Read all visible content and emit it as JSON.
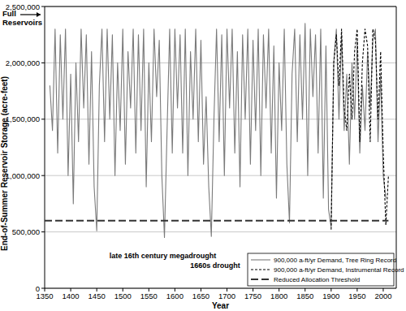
{
  "chart_data": {
    "type": "line",
    "x_label": "Year",
    "y_label": "End-of-Summer Reservoir Storage (acre-feet)",
    "xlim": [
      1350,
      2025
    ],
    "xticks": [
      1350,
      1400,
      1450,
      1500,
      1550,
      1600,
      1650,
      1700,
      1750,
      1800,
      1850,
      1900,
      1950,
      2000
    ],
    "ylim": [
      0,
      2500000
    ],
    "yticks": [
      0,
      {
        "value": 500000,
        "label": "500,000"
      },
      {
        "value": 1000000,
        "label": "1,000,000"
      },
      {
        "value": 1500000,
        "label": "1,500,000"
      },
      {
        "value": 2000000,
        "label": "2,000,000"
      },
      {
        "value": 2500000,
        "label": "2,500,000"
      }
    ],
    "grid": true,
    "legend": "bottom-right",
    "annotations": [
      "Full Reservoirs",
      "late 16th century megadrought",
      "1660s drought"
    ],
    "series": [
      {
        "name": "900,000 a-ft/yr Demand, Tree Ring Record",
        "color": "#7a7a7a",
        "line_style": "solid",
        "x": [
          1360,
          1365,
          1370,
          1375,
          1380,
          1385,
          1390,
          1395,
          1400,
          1405,
          1410,
          1415,
          1420,
          1425,
          1430,
          1435,
          1440,
          1445,
          1450,
          1455,
          1460,
          1465,
          1470,
          1475,
          1480,
          1485,
          1490,
          1495,
          1500,
          1505,
          1510,
          1515,
          1520,
          1525,
          1530,
          1535,
          1540,
          1545,
          1550,
          1555,
          1560,
          1565,
          1570,
          1575,
          1580,
          1585,
          1590,
          1595,
          1600,
          1605,
          1610,
          1615,
          1620,
          1625,
          1630,
          1635,
          1640,
          1645,
          1650,
          1655,
          1660,
          1665,
          1670,
          1675,
          1680,
          1685,
          1690,
          1695,
          1700,
          1705,
          1710,
          1715,
          1720,
          1725,
          1730,
          1735,
          1740,
          1745,
          1750,
          1755,
          1760,
          1765,
          1770,
          1775,
          1780,
          1785,
          1790,
          1795,
          1800,
          1805,
          1810,
          1815,
          1820,
          1825,
          1830,
          1835,
          1840,
          1845,
          1850,
          1855,
          1860,
          1865,
          1870,
          1875,
          1880,
          1885,
          1890,
          1895,
          1900,
          1905,
          1910,
          1915,
          1920,
          1925,
          1930,
          1935,
          1940,
          1945,
          1950,
          1955,
          1960,
          1965,
          1970,
          1975,
          1980,
          1985,
          1990,
          1995,
          2000,
          2005
        ],
        "values": [
          1800000,
          1400000,
          2300000,
          1200000,
          2250000,
          1500000,
          2300000,
          1000000,
          1900000,
          750000,
          2000000,
          1300000,
          2300000,
          1600000,
          2250000,
          1100000,
          2100000,
          900000,
          510000,
          1800000,
          2300000,
          1300000,
          2300000,
          1500000,
          2250000,
          1000000,
          2000000,
          1400000,
          2300000,
          1100000,
          2100000,
          1600000,
          2300000,
          1200000,
          2250000,
          1400000,
          2300000,
          900000,
          2000000,
          1300000,
          2300000,
          1700000,
          2200000,
          1000000,
          450000,
          1400000,
          2300000,
          1200000,
          2300000,
          1600000,
          2250000,
          1200000,
          2300000,
          1000000,
          2100000,
          1500000,
          2300000,
          1300000,
          2200000,
          1100000,
          1700000,
          900000,
          460000,
          1500000,
          2300000,
          1300000,
          2250000,
          1000000,
          2300000,
          1600000,
          2300000,
          1200000,
          2100000,
          900000,
          2250000,
          1500000,
          2300000,
          1100000,
          2200000,
          1400000,
          2300000,
          1000000,
          2250000,
          1600000,
          2300000,
          1200000,
          2150000,
          800000,
          2000000,
          1400000,
          2300000,
          1100000,
          580000,
          1900000,
          2300000,
          1300000,
          2250000,
          1500000,
          2350000,
          1000000,
          2300000,
          1700000,
          2250000,
          1200000,
          2300000,
          800000,
          2150000,
          700000,
          540000,
          2000000,
          2300000,
          1500000,
          2250000,
          1400000,
          1900000,
          1100000,
          2000000,
          1500000,
          2200000,
          1200000,
          1800000,
          1400000,
          2100000,
          1600000,
          2200000,
          2300000,
          1300000,
          1900000,
          1000000,
          800000
        ]
      },
      {
        "name": "900,000 a-ft/yr Demand, Instrumental Record",
        "color": "#000000",
        "line_style": "short_dash",
        "x": [
          1900,
          1905,
          1910,
          1915,
          1920,
          1925,
          1930,
          1935,
          1940,
          1945,
          1950,
          1955,
          1960,
          1965,
          1970,
          1975,
          1980,
          1985,
          1990,
          1995,
          2000,
          2005,
          2010
        ],
        "values": [
          520000,
          2000000,
          2250000,
          1800000,
          2300000,
          1600000,
          1400000,
          1900000,
          1500000,
          2100000,
          2300000,
          1300000,
          2000000,
          2300000,
          2150000,
          1300000,
          2300000,
          2200000,
          1500000,
          2100000,
          1200000,
          560000,
          1000000
        ]
      },
      {
        "name": "Reduced Allocation Threshold",
        "color": "#333333",
        "line_style": "long_dash",
        "x": [
          1350,
          2010
        ],
        "values": [
          600000,
          600000
        ]
      }
    ]
  }
}
